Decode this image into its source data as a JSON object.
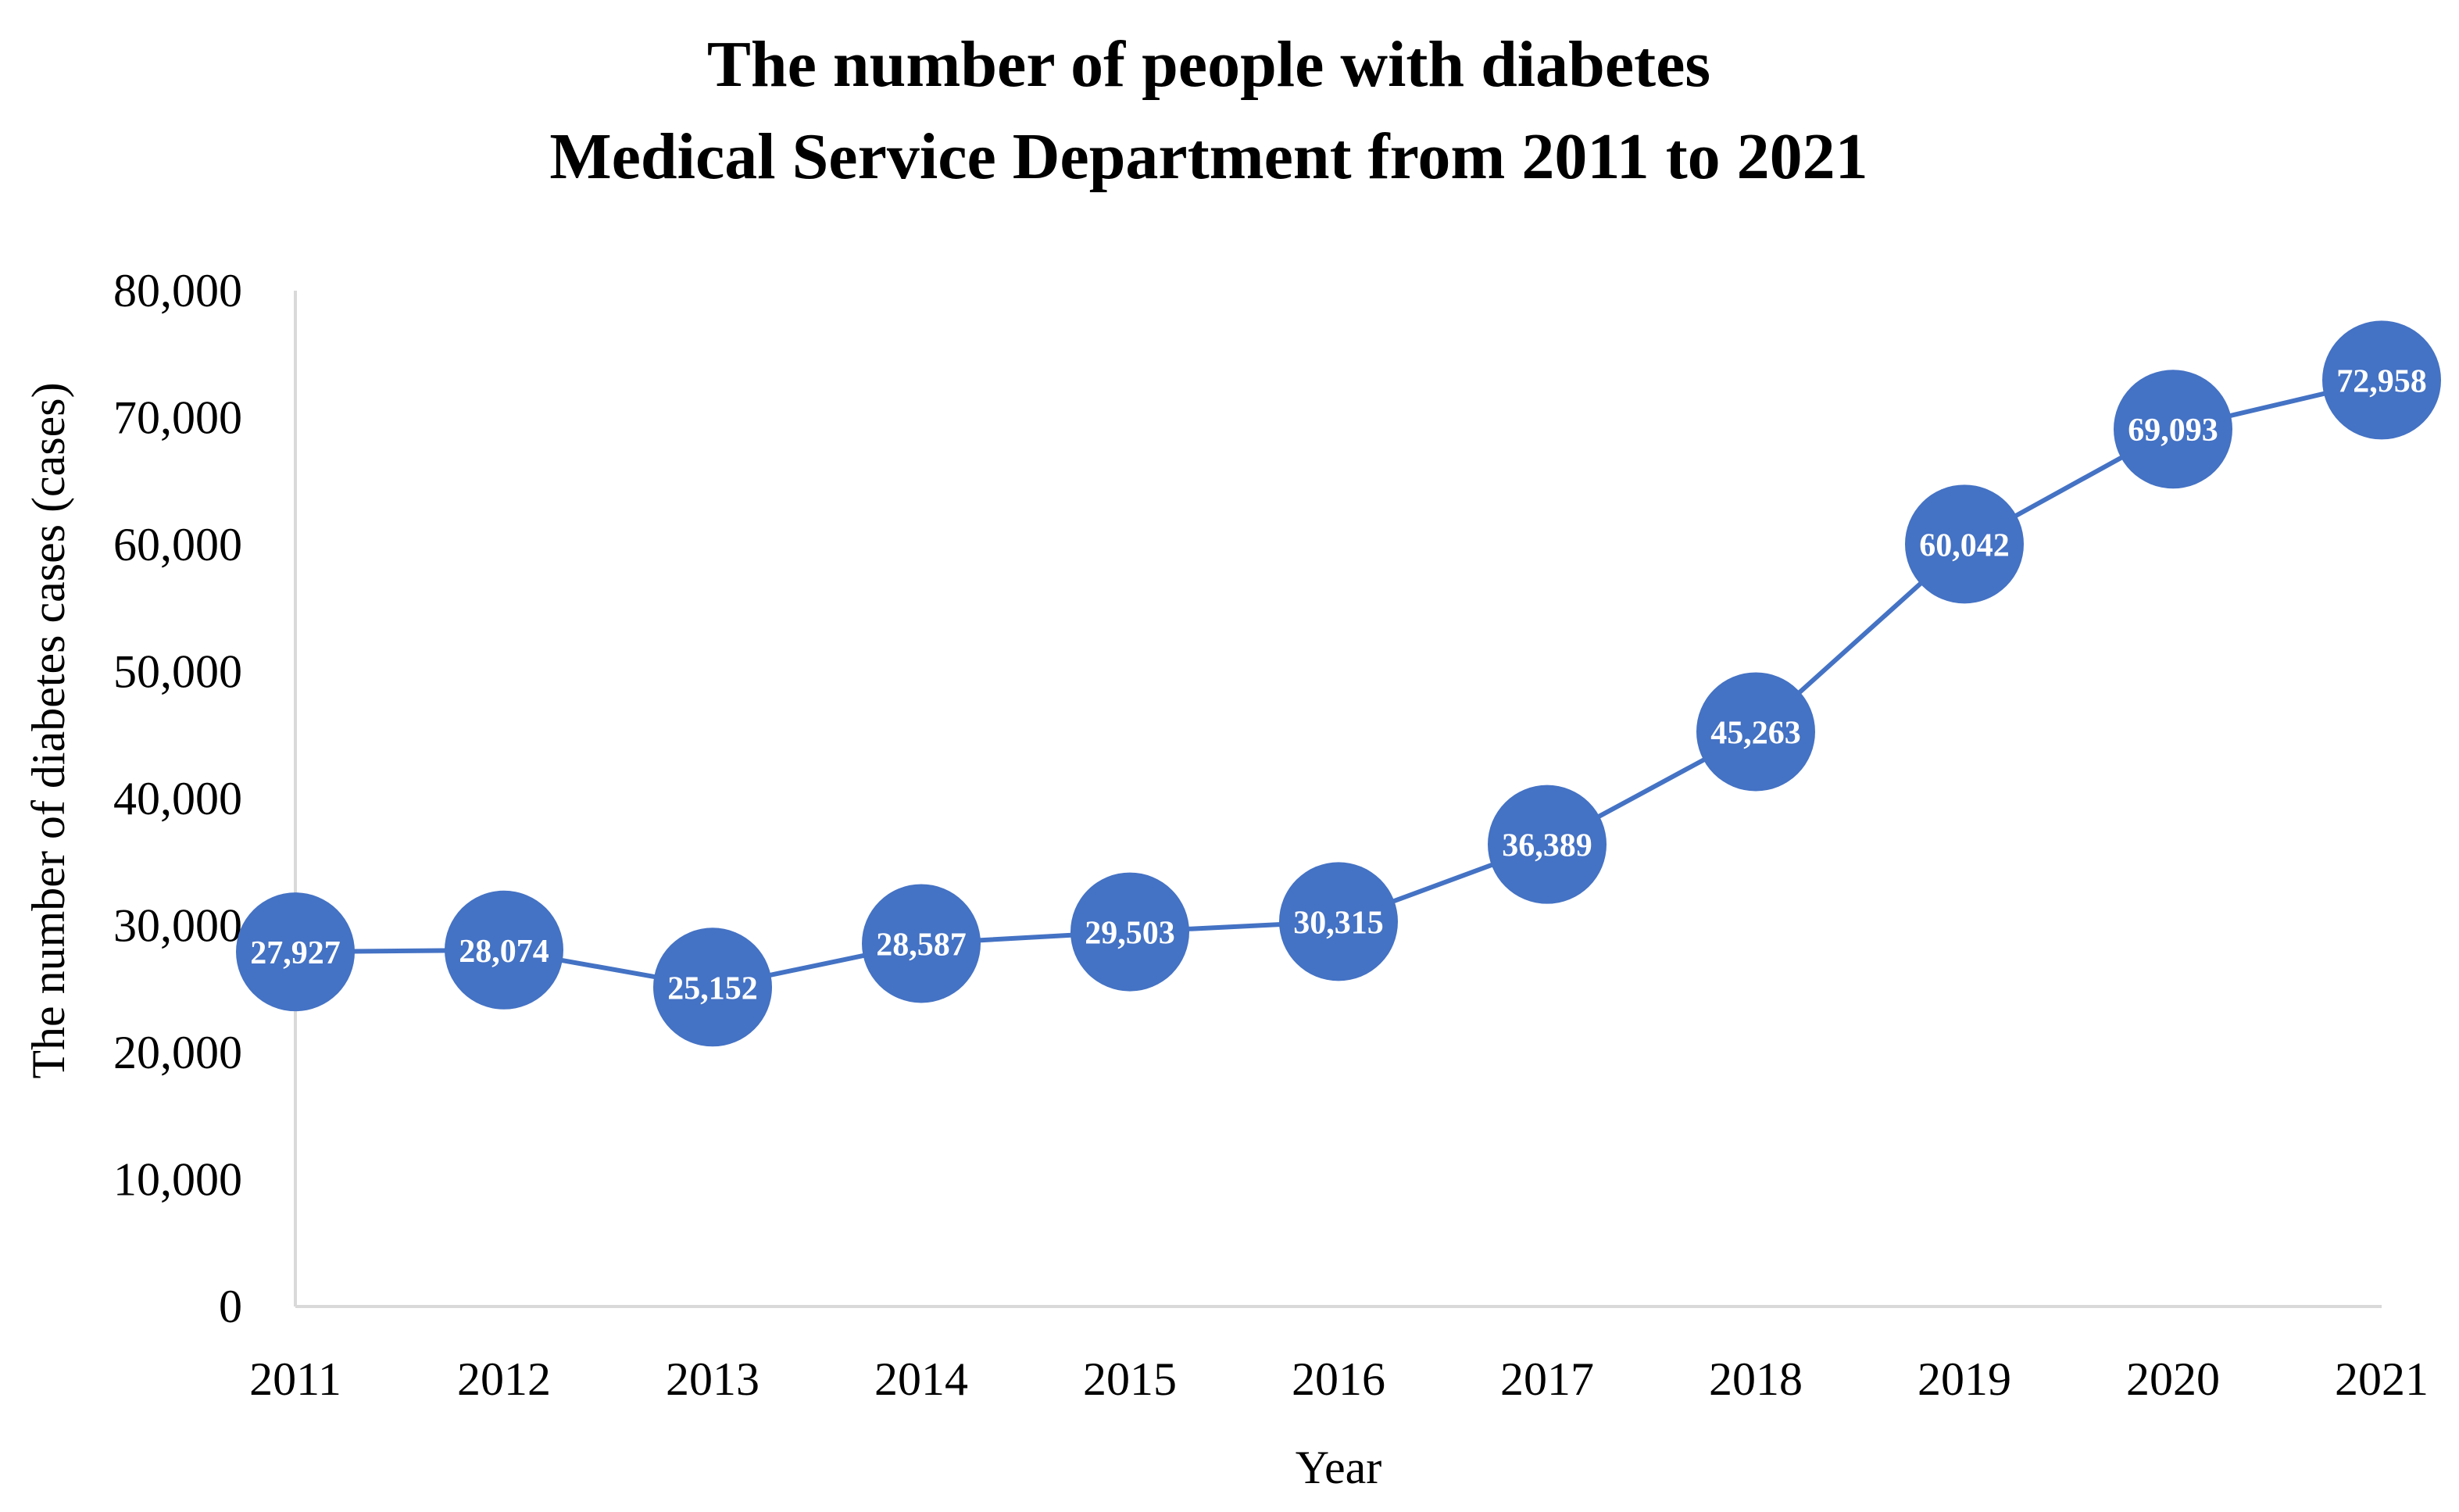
{
  "chart_data": {
    "type": "line",
    "title": [
      "The number of people with diabetes",
      "Medical Service Department from 2011 to 2021"
    ],
    "xlabel": "Year",
    "ylabel": "The number of diabetes cases (cases)",
    "categories": [
      "2011",
      "2012",
      "2013",
      "2014",
      "2015",
      "2016",
      "2017",
      "2018",
      "2019",
      "2020",
      "2021"
    ],
    "series": [
      {
        "values": [
          27927,
          28074,
          25152,
          28587,
          29503,
          30315,
          36389,
          45263,
          60042,
          69093,
          72958
        ],
        "labels": [
          "27,927",
          "28,074",
          "25,152",
          "28,587",
          "29,503",
          "30,315",
          "36,389",
          "45,263",
          "60,042",
          "69,093",
          "72,958"
        ]
      }
    ],
    "ylim": [
      0,
      80000
    ],
    "yticks": [
      0,
      10000,
      20000,
      30000,
      40000,
      50000,
      60000,
      70000,
      80000
    ],
    "ytick_labels": [
      "0",
      "10,000",
      "20,000",
      "30,000",
      "40,000",
      "50,000",
      "60,000",
      "70,000",
      "80,000"
    ],
    "grid": false,
    "legend": "none",
    "colors": {
      "series": "#4472C4",
      "axis": "#D9D9D9",
      "label": "#FFFFFF",
      "text": "#000000"
    }
  }
}
